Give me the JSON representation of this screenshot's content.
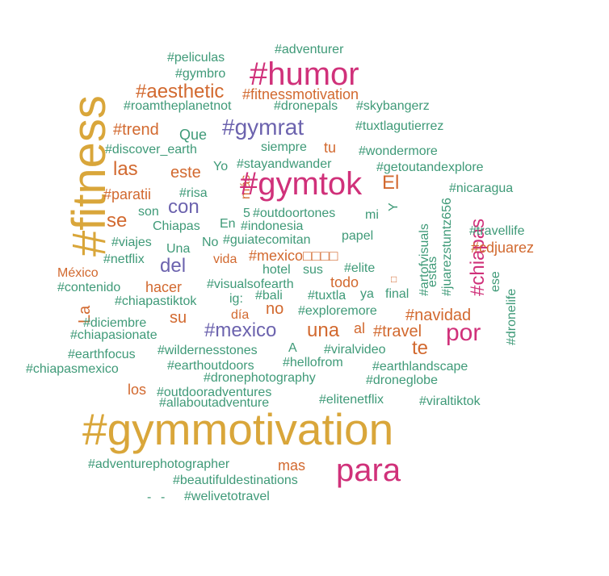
{
  "colors": {
    "gold": "#d9a63a",
    "magenta": "#d0317a",
    "purple": "#6c63ae",
    "orange": "#d2692f",
    "green": "#3f9a78"
  },
  "words": [
    {
      "text": "#adventurer",
      "color": "green"
    },
    {
      "text": "#peliculas",
      "color": "green"
    },
    {
      "text": "#humor",
      "color": "magenta"
    },
    {
      "text": "#gymbro",
      "color": "green"
    },
    {
      "text": "#aesthetic",
      "color": "orange"
    },
    {
      "text": "#fitnessmotivation",
      "color": "orange"
    },
    {
      "text": "#roamtheplanetnot",
      "color": "green"
    },
    {
      "text": "#dronepals",
      "color": "green"
    },
    {
      "text": "#skybangerz",
      "color": "green"
    },
    {
      "text": "#fitness",
      "color": "gold"
    },
    {
      "text": "#trend",
      "color": "orange"
    },
    {
      "text": "Que",
      "color": "green"
    },
    {
      "text": "#gymrat",
      "color": "purple"
    },
    {
      "text": "#tuxtlagutierrez",
      "color": "green"
    },
    {
      "text": "#discover_earth",
      "color": "green"
    },
    {
      "text": "siempre",
      "color": "green"
    },
    {
      "text": "tu",
      "color": "orange"
    },
    {
      "text": "#wondermore",
      "color": "green"
    },
    {
      "text": "las",
      "color": "orange"
    },
    {
      "text": "este",
      "color": "orange"
    },
    {
      "text": "Yo",
      "color": "green"
    },
    {
      "text": "#stayandwander",
      "color": "green"
    },
    {
      "text": "#getoutandexplore",
      "color": "green"
    },
    {
      "text": "más",
      "color": "orange"
    },
    {
      "text": "#gymtok",
      "color": "magenta"
    },
    {
      "text": "El",
      "color": "orange"
    },
    {
      "text": "#paratii",
      "color": "orange"
    },
    {
      "text": "#risa",
      "color": "green"
    },
    {
      "text": "#nicaragua",
      "color": "green"
    },
    {
      "text": "con",
      "color": "purple"
    },
    {
      "text": "se",
      "color": "orange"
    },
    {
      "text": "son",
      "color": "green"
    },
    {
      "text": "5",
      "color": "green"
    },
    {
      "text": "#outdoortones",
      "color": "green"
    },
    {
      "text": "mi",
      "color": "green"
    },
    {
      "text": "Y",
      "color": "green"
    },
    {
      "text": "#artofvisuals",
      "color": "green"
    },
    {
      "text": "#juarezstuntz656",
      "color": "green"
    },
    {
      "text": "#chiapas",
      "color": "magenta"
    },
    {
      "text": "Chiapas",
      "color": "green"
    },
    {
      "text": "En",
      "color": "green"
    },
    {
      "text": "#indonesia",
      "color": "green"
    },
    {
      "text": "#travellife",
      "color": "green"
    },
    {
      "text": "#viajes",
      "color": "green"
    },
    {
      "text": "Una",
      "color": "green"
    },
    {
      "text": "No",
      "color": "green"
    },
    {
      "text": "#guiatecomitan",
      "color": "green"
    },
    {
      "text": "papel",
      "color": "green"
    },
    {
      "text": "#cdjuarez",
      "color": "orange"
    },
    {
      "text": "#netflix",
      "color": "green"
    },
    {
      "text": "del",
      "color": "purple"
    },
    {
      "text": "vida",
      "color": "orange"
    },
    {
      "text": "#mexico□□□□",
      "color": "orange"
    },
    {
      "text": "México",
      "color": "orange"
    },
    {
      "text": "hotel",
      "color": "green"
    },
    {
      "text": "sus",
      "color": "green"
    },
    {
      "text": "#elite",
      "color": "green"
    },
    {
      "text": "estas",
      "color": "green"
    },
    {
      "text": "ese",
      "color": "green"
    },
    {
      "text": "#dronelife",
      "color": "green"
    },
    {
      "text": "#contenido",
      "color": "green"
    },
    {
      "text": "hacer",
      "color": "orange"
    },
    {
      "text": "#visualsofearth",
      "color": "green"
    },
    {
      "text": "todo",
      "color": "orange"
    },
    {
      "text": "□",
      "color": "orange"
    },
    {
      "text": "La",
      "color": "orange"
    },
    {
      "text": "#chiapastiktok",
      "color": "green"
    },
    {
      "text": "ig:",
      "color": "green"
    },
    {
      "text": "#bali",
      "color": "green"
    },
    {
      "text": "#tuxtla",
      "color": "green"
    },
    {
      "text": "ya",
      "color": "green"
    },
    {
      "text": "final",
      "color": "green"
    },
    {
      "text": "no",
      "color": "orange"
    },
    {
      "text": "día",
      "color": "orange"
    },
    {
      "text": "#exploremore",
      "color": "green"
    },
    {
      "text": "#navidad",
      "color": "orange"
    },
    {
      "text": "#diciembre",
      "color": "green"
    },
    {
      "text": "su",
      "color": "orange"
    },
    {
      "text": "#chiapasionate",
      "color": "green"
    },
    {
      "text": "#mexico",
      "color": "purple"
    },
    {
      "text": "una",
      "color": "orange"
    },
    {
      "text": "al",
      "color": "orange"
    },
    {
      "text": "#travel",
      "color": "orange"
    },
    {
      "text": "por",
      "color": "magenta"
    },
    {
      "text": "te",
      "color": "orange"
    },
    {
      "text": "#earthfocus",
      "color": "green"
    },
    {
      "text": "#wildernesstones",
      "color": "green"
    },
    {
      "text": "A",
      "color": "green"
    },
    {
      "text": "#viralvideo",
      "color": "green"
    },
    {
      "text": "#chiapasmexico",
      "color": "green"
    },
    {
      "text": "#earthoutdoors",
      "color": "green"
    },
    {
      "text": "#hellofrom",
      "color": "green"
    },
    {
      "text": "#earthlandscape",
      "color": "green"
    },
    {
      "text": "#dronephotography",
      "color": "green"
    },
    {
      "text": "#droneglobe",
      "color": "green"
    },
    {
      "text": "los",
      "color": "orange"
    },
    {
      "text": "#outdooradventures",
      "color": "green"
    },
    {
      "text": "#allaboutadventure",
      "color": "green"
    },
    {
      "text": "#elitenetflix",
      "color": "green"
    },
    {
      "text": "#viraltiktok",
      "color": "green"
    },
    {
      "text": "#gymmotivation",
      "color": "gold"
    },
    {
      "text": "#adventurephotographer",
      "color": "green"
    },
    {
      "text": "mas",
      "color": "orange"
    },
    {
      "text": "para",
      "color": "magenta"
    },
    {
      "text": "#beautifuldestinations",
      "color": "green"
    },
    {
      "text": "-",
      "color": "green"
    },
    {
      "text": "-",
      "color": "green"
    },
    {
      "text": "#welivetotravel",
      "color": "green"
    }
  ]
}
